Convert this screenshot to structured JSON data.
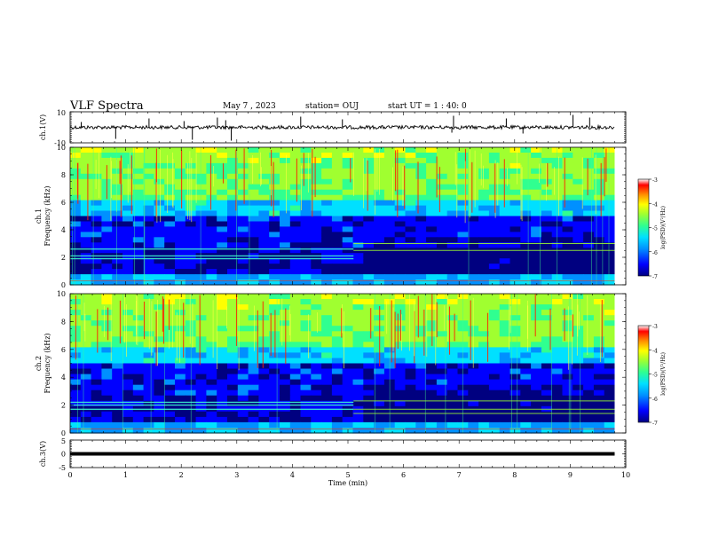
{
  "header": {
    "title": "VLF Spectra",
    "date": "May 7 , 2023",
    "station": "station= OUJ",
    "start_ut": "start UT = 1 : 40: 0"
  },
  "chart_data": [
    {
      "type": "line",
      "panel": "ch1-waveform",
      "ylabel": "ch.1(V)",
      "ylim": [
        -10,
        10
      ],
      "yticks": [
        10,
        -10
      ],
      "x_range": [
        0,
        10
      ],
      "data_end_min": 9.8,
      "baseline_value": 0,
      "spike_times_min": [
        0.2,
        0.82,
        1.42,
        2.05,
        2.2,
        2.65,
        2.8,
        2.9,
        4.15,
        4.9,
        6.87,
        6.9,
        7.85,
        8.15,
        9.05,
        9.35
      ]
    },
    {
      "type": "heatmap",
      "panel": "ch1-spectrogram",
      "ylabel": "Frequency (kHz)",
      "channel_label": "ch.1",
      "ylim": [
        0,
        10
      ],
      "yticks": [
        0,
        2,
        4,
        6,
        8,
        10
      ],
      "x_range": [
        0,
        10
      ],
      "data_end_min": 9.8,
      "regime_change_min": 5.1,
      "colorbar": {
        "label": "log(PSD)(V²/Hz)",
        "range": [
          -7,
          -3
        ],
        "ticks": [
          -3,
          -4,
          -5,
          -6,
          -7
        ]
      },
      "hum_line_khz_before": [
        1.9,
        2.1,
        2.6
      ],
      "hum_line_khz_after": [
        2.5,
        3.0
      ]
    },
    {
      "type": "heatmap",
      "panel": "ch2-spectrogram",
      "ylabel": "Frequency (kHz)",
      "channel_label": "ch.2",
      "ylim": [
        0,
        10
      ],
      "yticks": [
        0,
        2,
        4,
        6,
        8,
        10
      ],
      "x_range": [
        0,
        10
      ],
      "data_end_min": 9.8,
      "regime_change_min": 5.1,
      "colorbar": {
        "label": "log(PSD)(V²/Hz)",
        "range": [
          -7,
          -3
        ],
        "ticks": [
          -3,
          -4,
          -5,
          -6,
          -7
        ]
      },
      "hum_line_khz_before": [
        1.7,
        2.0,
        2.2
      ],
      "hum_line_khz_after": [
        1.4,
        1.7,
        2.3
      ]
    },
    {
      "type": "line",
      "panel": "ch3-waveform",
      "ylabel": "ch.3(V)",
      "ylim": [
        -5,
        5
      ],
      "yticks": [
        5,
        0,
        -5
      ],
      "x_range": [
        0,
        10
      ],
      "data_end_min": 9.8,
      "constant_value": 0,
      "xlabel": "Time (min)",
      "xticks": [
        0,
        1,
        2,
        3,
        4,
        5,
        6,
        7,
        8,
        9,
        10
      ]
    }
  ],
  "colormap": [
    "#000080",
    "#0000ff",
    "#0090ff",
    "#00e0ff",
    "#30ff90",
    "#a0ff30",
    "#ffff00",
    "#ff9000",
    "#ff0000",
    "#ffffff"
  ]
}
